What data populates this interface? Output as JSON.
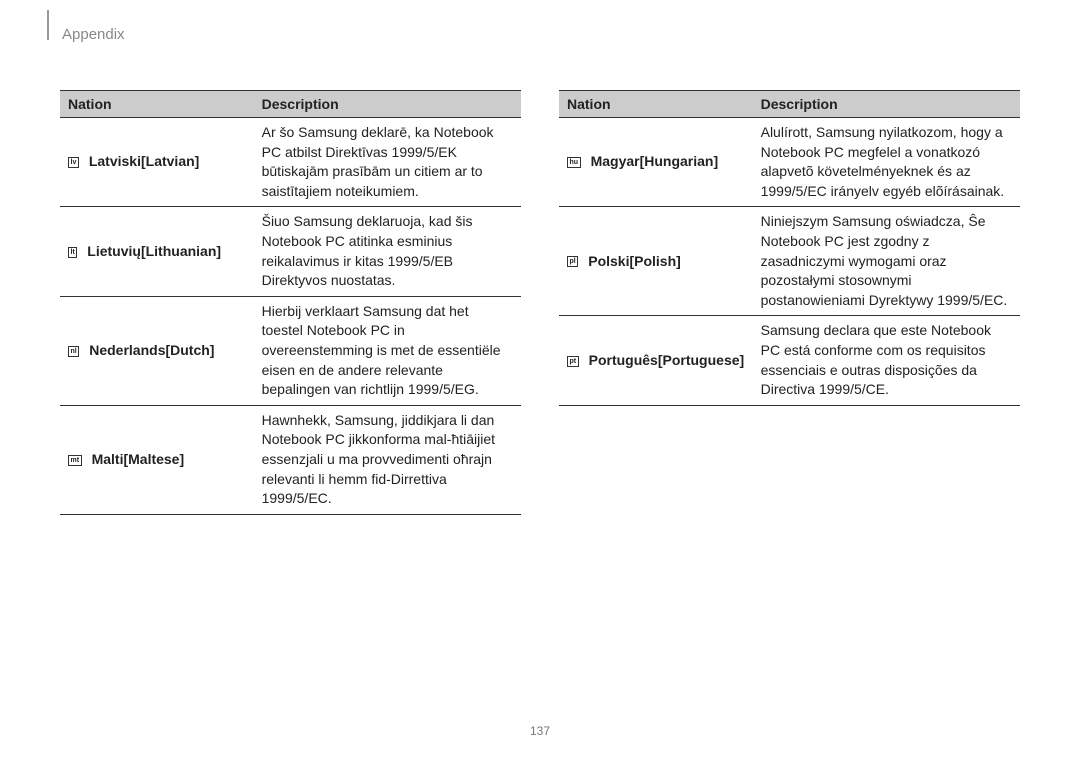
{
  "header": "Appendix",
  "pageNumber": "137",
  "left": {
    "headers": {
      "nation": "Nation",
      "description": "Description"
    },
    "rows": [
      {
        "code": "lv",
        "lang": "Latviski[Latvian]",
        "desc": "Ar šo Samsung deklarē, ka Notebook PC atbilst Direktīvas 1999/5/EK būtiskajām prasībām un citiem ar to saistītajiem noteikumiem."
      },
      {
        "code": "lt",
        "lang": "Lietuvių[Lithuanian]",
        "desc": "Šiuo Samsung deklaruoja, kad šis Notebook PC atitinka esminius reikalavimus ir kitas 1999/5/EB Direktyvos nuostatas."
      },
      {
        "code": "nl",
        "lang": "Nederlands[Dutch]",
        "desc": "Hierbij verklaart Samsung dat het toestel Notebook PC in overeenstemming is met de essentiële eisen en de andere relevante bepalingen van richtlijn 1999/5/EG."
      },
      {
        "code": "mt",
        "lang": "Malti[Maltese]",
        "desc": "Hawnhekk, Samsung, jiddikjara li dan Notebook PC jikkonforma mal-ħtiāijiet essenzjali u ma provvedimenti oħrajn relevanti li hemm fid-Dirrettiva 1999/5/EC."
      }
    ]
  },
  "right": {
    "headers": {
      "nation": "Nation",
      "description": "Description"
    },
    "rows": [
      {
        "code": "hu",
        "lang": "Magyar[Hungarian]",
        "desc": "Alulírott, Samsung nyilatkozom, hogy a Notebook PC megfelel a vonatkozó alapvetõ követelményeknek és az 1999/5/EC irányelv egyéb elõírásainak."
      },
      {
        "code": "pl",
        "lang": "Polski[Polish]",
        "desc": "Niniejszym Samsung oświadcza, Ŝe Notebook PC jest zgodny z zasadniczymi wymogami oraz pozostałymi stosownymi postanowieniami Dyrektywy 1999/5/EC."
      },
      {
        "code": "pt",
        "lang": "Português[Portuguese]",
        "desc": "Samsung declara que este Notebook PC está conforme com os requisitos essenciais e outras disposições da Directiva 1999/5/CE."
      }
    ]
  },
  "styling": {
    "header_bg": "#cccccc",
    "border_color": "#333333",
    "text_color": "#222222",
    "header_text_color": "#888888",
    "page_bg": "#ffffff",
    "font_size_body": 14,
    "font_size_header": 15
  }
}
